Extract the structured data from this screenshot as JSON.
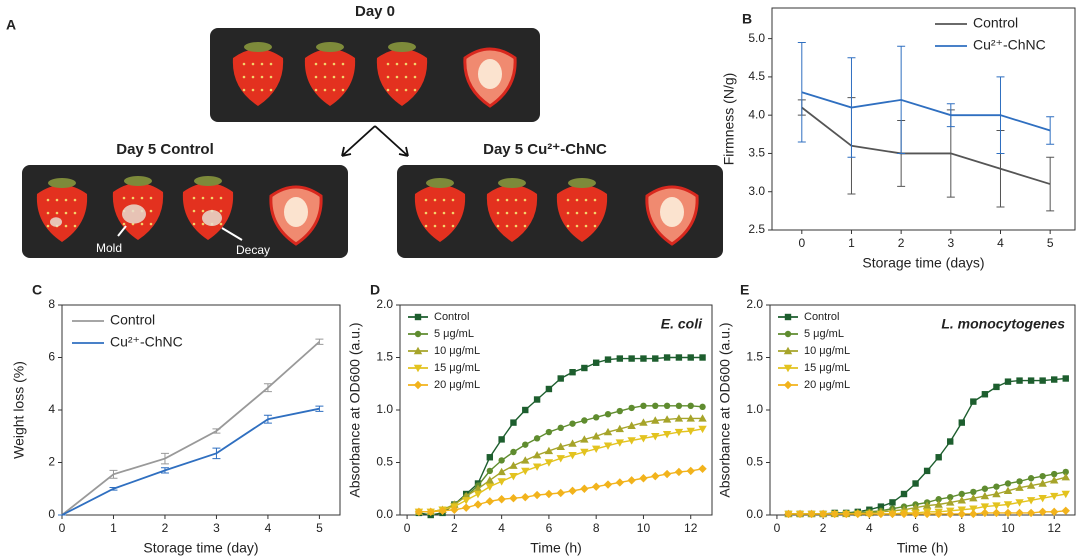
{
  "photo_panel": {
    "label": "A",
    "groups": [
      {
        "title": "Day 0"
      },
      {
        "title": "Day 5 Control"
      },
      {
        "title": "Day 5 Cu²⁺-ChNC"
      }
    ],
    "annotations": [
      "Mold",
      "Decay"
    ]
  },
  "chart_data": [
    {
      "type": "line",
      "label": "B",
      "xlabel": "Storage time (days)",
      "ylabel": "Firmness (N/g)",
      "x": [
        0,
        1,
        2,
        3,
        4,
        5
      ],
      "xlim": [
        -0.6,
        5.5
      ],
      "xticks": [
        0,
        1,
        2,
        3,
        4,
        5
      ],
      "ylim": [
        2.5,
        5.4
      ],
      "yticks": [
        2.5,
        {
          "value": 3,
          "label": "3.0"
        },
        3.5,
        {
          "value": 4,
          "label": "4.0"
        },
        4.5,
        {
          "value": 5,
          "label": "5.0"
        }
      ],
      "legend": "upper right",
      "series": [
        {
          "name": "Control",
          "color": "#555555",
          "values": [
            4.1,
            3.6,
            3.5,
            3.5,
            3.3,
            3.1
          ],
          "errors": [
            0.1,
            0.63,
            0.43,
            0.57,
            0.5,
            0.35
          ]
        },
        {
          "name": "Cu²⁺-ChNC",
          "color": "#2f6fc0",
          "values": [
            4.3,
            4.1,
            4.2,
            4.0,
            4.0,
            3.8
          ],
          "errors": [
            0.65,
            0.65,
            0.7,
            0.15,
            0.5,
            0.18
          ]
        }
      ]
    },
    {
      "type": "line",
      "label": "C",
      "xlabel": "Storage time (day)",
      "ylabel": "Weight loss (%)",
      "x": [
        0,
        1,
        2,
        3,
        4,
        5
      ],
      "xlim": [
        0,
        5.4
      ],
      "xticks": [
        0,
        1,
        2,
        3,
        4,
        5
      ],
      "ylim": [
        0,
        8
      ],
      "yticks": [
        0,
        2,
        4,
        6,
        8
      ],
      "legend": "upper left",
      "series": [
        {
          "name": "Control",
          "color": "#999999",
          "values": [
            0,
            1.55,
            2.15,
            3.2,
            4.85,
            6.6
          ],
          "errors": [
            0,
            0.15,
            0.2,
            0.08,
            0.15,
            0.1
          ]
        },
        {
          "name": "Cu²⁺-ChNC",
          "color": "#2f6fc0",
          "values": [
            0,
            1.0,
            1.7,
            2.35,
            3.65,
            4.05
          ],
          "errors": [
            0,
            0.05,
            0.1,
            0.2,
            0.15,
            0.1
          ]
        }
      ]
    },
    {
      "type": "line",
      "label": "D",
      "xlabel": "Time (h)",
      "ylabel": "Absorbance at OD600 (a.u.)",
      "annotation": "E. coli",
      "x": [
        0.5,
        1,
        1.5,
        2,
        2.5,
        3,
        3.5,
        4,
        4.5,
        5,
        5.5,
        6,
        6.5,
        7,
        7.5,
        8,
        8.5,
        9,
        9.5,
        10,
        10.5,
        11,
        11.5,
        12,
        12.5
      ],
      "xlim": [
        -0.3,
        12.9
      ],
      "xticks": [
        0,
        2,
        4,
        6,
        8,
        10,
        12
      ],
      "ylim": [
        0,
        2
      ],
      "yticks": [
        {
          "value": 0,
          "label": "0.0"
        },
        0.5,
        {
          "value": 1,
          "label": "1.0"
        },
        1.5,
        {
          "value": 2,
          "label": "2.0"
        }
      ],
      "legend": "upper left",
      "series": [
        {
          "name": "Control",
          "color": "#1d5e2e",
          "marker": "square",
          "values": [
            0.02,
            0.0,
            0.02,
            0.1,
            0.2,
            0.3,
            0.55,
            0.72,
            0.88,
            1.0,
            1.1,
            1.2,
            1.3,
            1.36,
            1.4,
            1.45,
            1.48,
            1.49,
            1.49,
            1.49,
            1.49,
            1.5,
            1.5,
            1.5,
            1.5
          ]
        },
        {
          "name": "5 μg/mL",
          "color": "#5f8c2f",
          "marker": "circle",
          "values": [
            0.03,
            0.03,
            0.05,
            0.1,
            0.18,
            0.28,
            0.42,
            0.52,
            0.6,
            0.67,
            0.73,
            0.79,
            0.83,
            0.87,
            0.9,
            0.93,
            0.96,
            0.99,
            1.02,
            1.04,
            1.04,
            1.04,
            1.04,
            1.04,
            1.03
          ]
        },
        {
          "name": "10 μg/mL",
          "color": "#a6a42a",
          "marker": "triangle-up",
          "values": [
            0.03,
            0.03,
            0.05,
            0.1,
            0.18,
            0.25,
            0.33,
            0.41,
            0.47,
            0.52,
            0.57,
            0.61,
            0.65,
            0.68,
            0.72,
            0.75,
            0.79,
            0.82,
            0.85,
            0.88,
            0.9,
            0.91,
            0.92,
            0.92,
            0.92
          ]
        },
        {
          "name": "15 μg/mL",
          "color": "#e3c31f",
          "marker": "triangle-down",
          "values": [
            0.03,
            0.03,
            0.05,
            0.08,
            0.14,
            0.2,
            0.27,
            0.32,
            0.37,
            0.42,
            0.46,
            0.5,
            0.54,
            0.57,
            0.6,
            0.63,
            0.66,
            0.69,
            0.71,
            0.73,
            0.75,
            0.77,
            0.79,
            0.8,
            0.82
          ]
        },
        {
          "name": "20 μg/mL",
          "color": "#f2b31c",
          "marker": "diamond",
          "values": [
            0.03,
            0.03,
            0.04,
            0.05,
            0.07,
            0.1,
            0.13,
            0.15,
            0.16,
            0.17,
            0.19,
            0.2,
            0.21,
            0.23,
            0.25,
            0.27,
            0.29,
            0.31,
            0.33,
            0.35,
            0.37,
            0.39,
            0.41,
            0.42,
            0.44
          ]
        }
      ]
    },
    {
      "type": "line",
      "label": "E",
      "xlabel": "Time (h)",
      "ylabel": "Absorbance at OD600 (a.u.)",
      "annotation": "L. monocytogenes",
      "x": [
        0.5,
        1,
        1.5,
        2,
        2.5,
        3,
        3.5,
        4,
        4.5,
        5,
        5.5,
        6,
        6.5,
        7,
        7.5,
        8,
        8.5,
        9,
        9.5,
        10,
        10.5,
        11,
        11.5,
        12,
        12.5
      ],
      "xlim": [
        -0.3,
        12.9
      ],
      "xticks": [
        0,
        2,
        4,
        6,
        8,
        10,
        12
      ],
      "ylim": [
        0,
        2
      ],
      "yticks": [
        {
          "value": 0,
          "label": "0.0"
        },
        0.5,
        {
          "value": 1,
          "label": "1.0"
        },
        1.5,
        {
          "value": 2,
          "label": "2.0"
        }
      ],
      "legend": "upper left",
      "series": [
        {
          "name": "Control",
          "color": "#1d5e2e",
          "marker": "square",
          "values": [
            0.01,
            0.01,
            0.01,
            0.01,
            0.02,
            0.02,
            0.03,
            0.05,
            0.08,
            0.12,
            0.2,
            0.3,
            0.42,
            0.55,
            0.7,
            0.88,
            1.08,
            1.15,
            1.22,
            1.27,
            1.28,
            1.28,
            1.28,
            1.29,
            1.3
          ]
        },
        {
          "name": "5 μg/mL",
          "color": "#5f8c2f",
          "marker": "circle",
          "values": [
            0.01,
            0.01,
            0.01,
            0.01,
            0.01,
            0.02,
            0.02,
            0.03,
            0.04,
            0.06,
            0.08,
            0.1,
            0.12,
            0.15,
            0.17,
            0.2,
            0.22,
            0.25,
            0.27,
            0.3,
            0.32,
            0.35,
            0.37,
            0.39,
            0.41
          ]
        },
        {
          "name": "10 μg/mL",
          "color": "#a6a42a",
          "marker": "triangle-up",
          "values": [
            0.01,
            0.01,
            0.01,
            0.01,
            0.01,
            0.01,
            0.02,
            0.02,
            0.03,
            0.04,
            0.05,
            0.07,
            0.09,
            0.1,
            0.12,
            0.14,
            0.16,
            0.18,
            0.2,
            0.23,
            0.26,
            0.28,
            0.3,
            0.33,
            0.36
          ]
        },
        {
          "name": "15 μg/mL",
          "color": "#e3c31f",
          "marker": "triangle-down",
          "values": [
            0.01,
            0.01,
            0.01,
            0.01,
            0.01,
            0.01,
            0.01,
            0.01,
            0.01,
            0.01,
            0.02,
            0.02,
            0.03,
            0.03,
            0.04,
            0.05,
            0.06,
            0.08,
            0.09,
            0.1,
            0.12,
            0.14,
            0.16,
            0.18,
            0.2
          ]
        },
        {
          "name": "20 μg/mL",
          "color": "#f2b31c",
          "marker": "diamond",
          "values": [
            0.01,
            0.01,
            0.01,
            0.01,
            0.01,
            0.01,
            0.01,
            0.01,
            0.01,
            0.01,
            0.01,
            0.01,
            0.01,
            0.01,
            0.01,
            0.01,
            0.01,
            0.02,
            0.02,
            0.02,
            0.02,
            0.02,
            0.03,
            0.03,
            0.04
          ]
        }
      ]
    }
  ]
}
